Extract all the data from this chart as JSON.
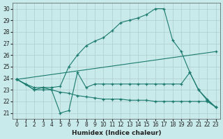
{
  "xlabel": "Humidex (Indice chaleur)",
  "background_color": "#c8eaea",
  "grid_color": "#b0cccc",
  "line_color": "#1a7a6e",
  "xlim": [
    -0.5,
    23.5
  ],
  "ylim": [
    20.5,
    30.5
  ],
  "xticks": [
    0,
    1,
    2,
    3,
    4,
    5,
    6,
    7,
    8,
    9,
    10,
    11,
    12,
    13,
    14,
    15,
    16,
    17,
    18,
    19,
    20,
    21,
    22,
    23
  ],
  "yticks": [
    21,
    22,
    23,
    24,
    25,
    26,
    27,
    28,
    29,
    30
  ],
  "series": [
    {
      "x": [
        0,
        1,
        2,
        3,
        4,
        5,
        6,
        7,
        8,
        9,
        10,
        11,
        12,
        13,
        14,
        15,
        16,
        17,
        18,
        19,
        20,
        21,
        22,
        23
      ],
      "y": [
        23.9,
        23.5,
        23.2,
        23.2,
        23.2,
        23.3,
        25.0,
        26.0,
        26.8,
        27.2,
        27.5,
        28.1,
        28.8,
        29.0,
        29.2,
        29.5,
        30.0,
        30.0,
        27.3,
        26.3,
        24.5,
        23.0,
        22.1,
        21.5
      ]
    },
    {
      "x": [
        0,
        23
      ],
      "y": [
        23.9,
        26.3
      ]
    },
    {
      "x": [
        0,
        1,
        2,
        3,
        4,
        5,
        6,
        7,
        8,
        9,
        10,
        11,
        12,
        13,
        14,
        15,
        16,
        17,
        18,
        19,
        20,
        21,
        22,
        23
      ],
      "y": [
        23.9,
        23.5,
        23.0,
        23.2,
        23.0,
        21.0,
        21.2,
        24.5,
        23.2,
        23.5,
        23.5,
        23.5,
        23.5,
        23.5,
        23.5,
        23.5,
        23.5,
        23.5,
        23.5,
        23.5,
        24.5,
        23.0,
        22.2,
        21.5
      ]
    },
    {
      "x": [
        0,
        2,
        3,
        4,
        5,
        6,
        7,
        8,
        9,
        10,
        11,
        12,
        13,
        14,
        15,
        16,
        17,
        18,
        19,
        20,
        21,
        22,
        23
      ],
      "y": [
        23.9,
        23.0,
        23.0,
        23.0,
        22.8,
        22.7,
        22.5,
        22.4,
        22.3,
        22.2,
        22.2,
        22.2,
        22.1,
        22.1,
        22.1,
        22.0,
        22.0,
        22.0,
        22.0,
        22.0,
        22.0,
        22.0,
        21.5
      ]
    }
  ]
}
